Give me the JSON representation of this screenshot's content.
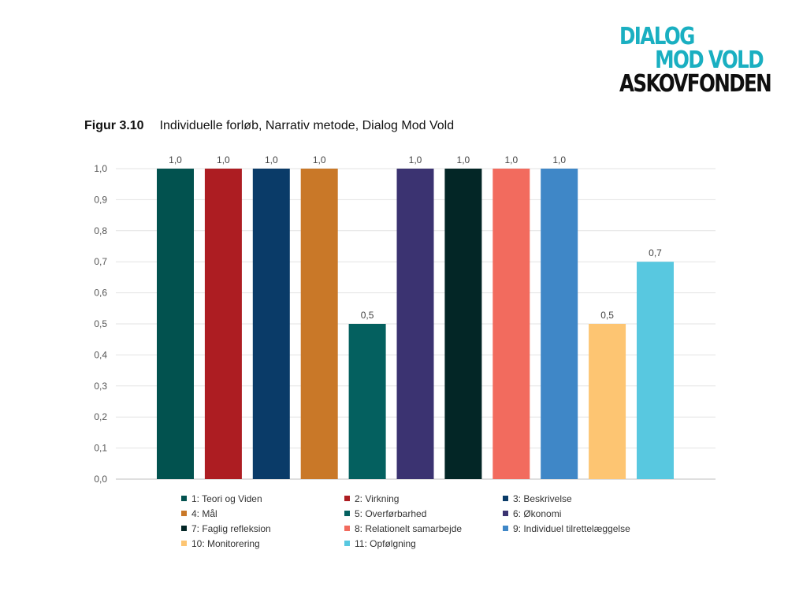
{
  "logo": {
    "line1": "DIALOG",
    "line2": "MOD VOLD",
    "line3": "ASKOVFONDEN"
  },
  "figure": {
    "number": "Figur 3.10",
    "title": "Individuelle forløb, Narrativ metode, Dialog Mod Vold"
  },
  "chart_data": {
    "type": "bar",
    "title": "Individuelle forløb, Narrativ metode, Dialog Mod Vold",
    "ylim": [
      0,
      1
    ],
    "yticks": [
      "0,0",
      "0,1",
      "0,2",
      "0,3",
      "0,4",
      "0,5",
      "0,6",
      "0,7",
      "0,8",
      "0,9",
      "1,0"
    ],
    "grid": true,
    "legend_position": "bottom",
    "categories": [
      "1: Teori og Viden",
      "2: Virkning",
      "3: Beskrivelse",
      "4: Mål",
      "5: Overførbarhed",
      "6: Økonomi",
      "7: Faglig refleksion",
      "8: Relationelt samarbejde",
      "9: Individuel tilrettelæggelse",
      "10: Monitorering",
      "11: Opfølgning"
    ],
    "values": [
      1.0,
      1.0,
      1.0,
      1.0,
      0.5,
      1.0,
      1.0,
      1.0,
      1.0,
      0.5,
      0.7
    ],
    "value_labels": [
      "1,0",
      "1,0",
      "1,0",
      "1,0",
      "0,5",
      "1,0",
      "1,0",
      "1,0",
      "1,0",
      "0,5",
      "0,7"
    ],
    "colors": [
      "#02524F",
      "#AD1D22",
      "#0A3B68",
      "#C97828",
      "#04605F",
      "#3B3371",
      "#032626",
      "#F26B5E",
      "#3F87C7",
      "#FDC572",
      "#58C8E0"
    ]
  }
}
